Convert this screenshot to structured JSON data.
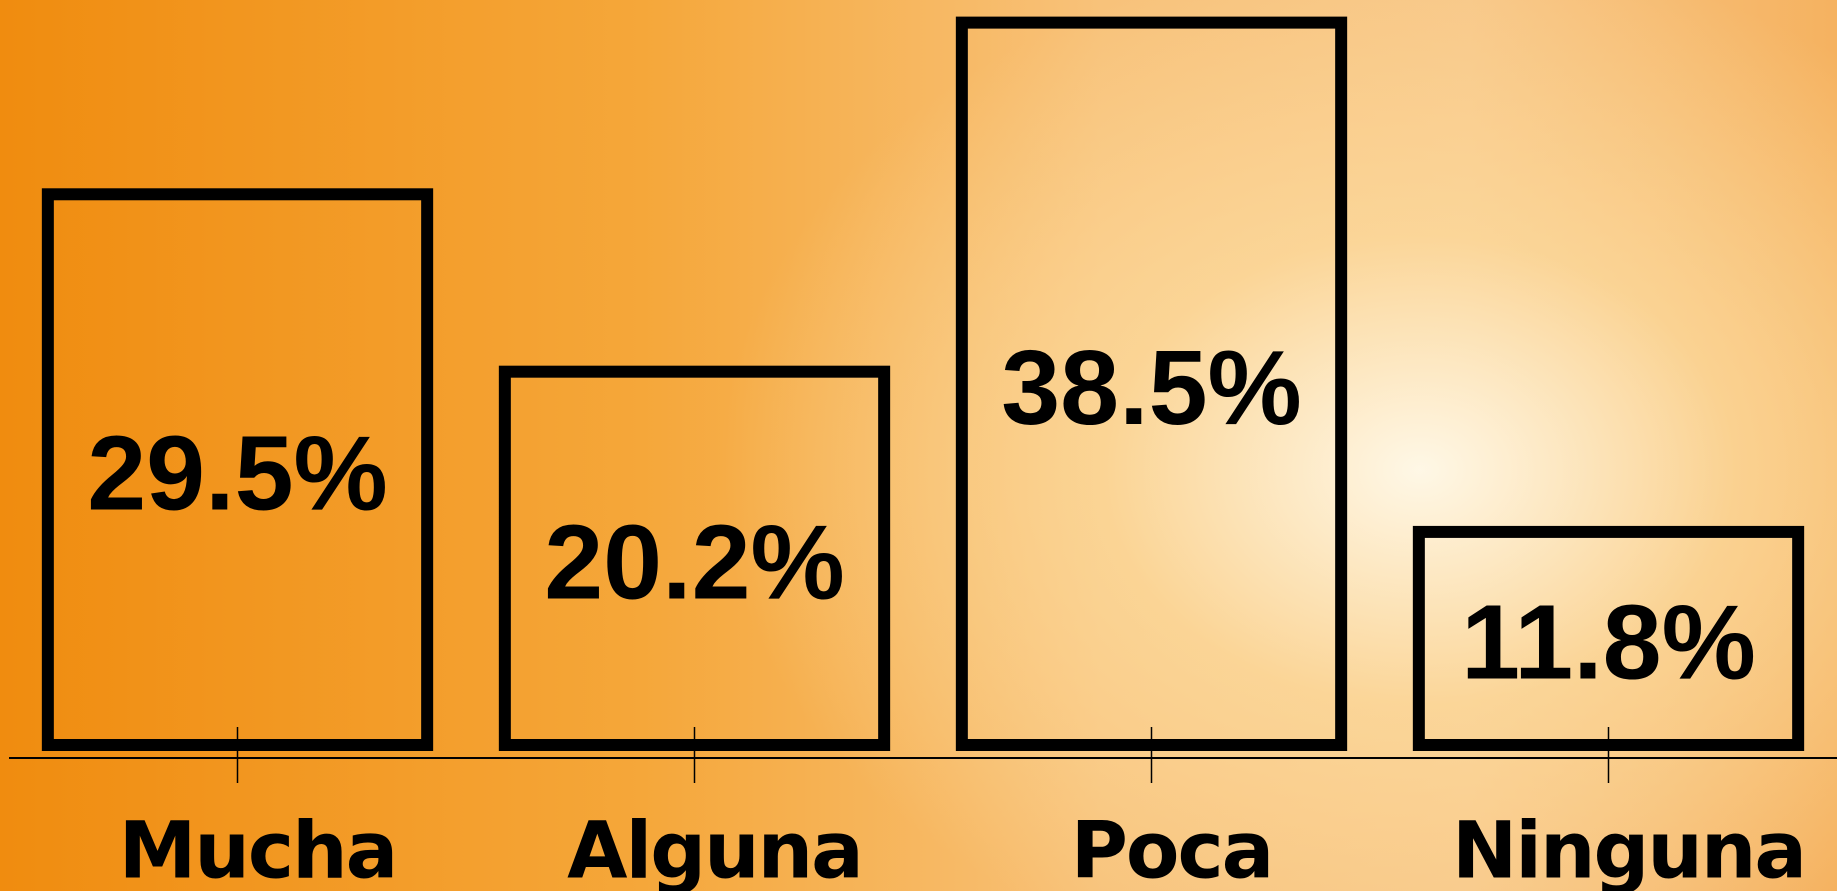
{
  "chart_data": {
    "type": "bar",
    "categories": [
      "Mucha",
      "Alguna",
      "Poca",
      "Ninguna"
    ],
    "values": [
      29.5,
      20.2,
      38.5,
      11.8
    ],
    "value_labels": [
      "29.5%",
      "20.2%",
      "38.5%",
      "11.8%"
    ],
    "ylim": [
      0,
      40
    ],
    "color": "#000000"
  }
}
